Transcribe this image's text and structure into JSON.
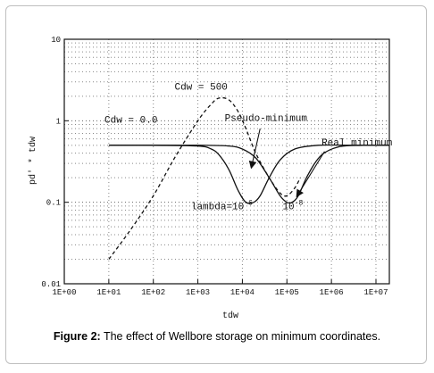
{
  "figure": {
    "caption_label": "Figure 2:",
    "caption_text": " The effect of Wellbore storage on minimum coordinates."
  },
  "chart_data": {
    "type": "line",
    "xlabel": "tdw",
    "ylabel": "pd' * tdw",
    "x_scale": "log",
    "y_scale": "log",
    "xlim": [
      1,
      20000000
    ],
    "ylim": [
      0.01,
      10
    ],
    "grid": true,
    "x_ticks": [
      1,
      10,
      100,
      1000,
      10000,
      100000,
      1000000,
      10000000
    ],
    "x_tick_labels": [
      "1E+00",
      "1E+01",
      "1E+02",
      "1E+03",
      "1E+04",
      "1E+05",
      "1E+06",
      "1E+07"
    ],
    "y_ticks": [
      0.01,
      0.1,
      1,
      10
    ],
    "y_tick_labels": [
      "0.01",
      "0.1",
      "1",
      "10"
    ],
    "annotations": [
      {
        "text": "Cdw = 500",
        "x": 300,
        "y": 2.4
      },
      {
        "text": "Cdw = 0.0",
        "x": 8,
        "y": 0.95
      },
      {
        "text": "Pseudo-minimum",
        "x": 4000,
        "y": 1.0
      },
      {
        "text": "Real minimum",
        "x": 600000,
        "y": 0.5
      },
      {
        "text": "lambda=10^-6",
        "x": 700,
        "y": 0.082
      },
      {
        "text": "10^-8",
        "x": 80000,
        "y": 0.082
      }
    ],
    "series": [
      {
        "style": "dashed",
        "x": [
          10,
          30,
          100,
          300,
          1000,
          2000,
          3000,
          5000,
          8000,
          12000,
          20000,
          40000,
          70000,
          100000,
          150000,
          200000
        ],
        "y": [
          0.02,
          0.045,
          0.12,
          0.35,
          1.0,
          1.6,
          1.9,
          1.8,
          1.3,
          0.8,
          0.4,
          0.2,
          0.13,
          0.12,
          0.15,
          0.2
        ]
      },
      {
        "style": "solid",
        "x": [
          10,
          100,
          1000,
          2000,
          3000,
          5000,
          8000,
          12000,
          18000,
          25000,
          40000,
          70000,
          150000,
          500000,
          3000000,
          20000000
        ],
        "y": [
          0.5,
          0.5,
          0.49,
          0.45,
          0.38,
          0.25,
          0.14,
          0.1,
          0.1,
          0.12,
          0.2,
          0.33,
          0.45,
          0.5,
          0.5,
          0.5
        ]
      },
      {
        "style": "solid",
        "x": [
          10,
          1000,
          5000,
          10000,
          20000,
          40000,
          70000,
          100000,
          130000,
          180000,
          300000,
          600000,
          1500000,
          5000000,
          20000000
        ],
        "y": [
          0.5,
          0.5,
          0.49,
          0.45,
          0.35,
          0.2,
          0.12,
          0.1,
          0.1,
          0.12,
          0.22,
          0.38,
          0.48,
          0.5,
          0.5
        ]
      }
    ],
    "arrows": [
      {
        "from": [
          25000,
          0.8
        ],
        "to": [
          16000,
          0.27
        ]
      },
      {
        "from": [
          700000,
          0.42
        ],
        "to": [
          170000,
          0.12
        ]
      }
    ]
  }
}
